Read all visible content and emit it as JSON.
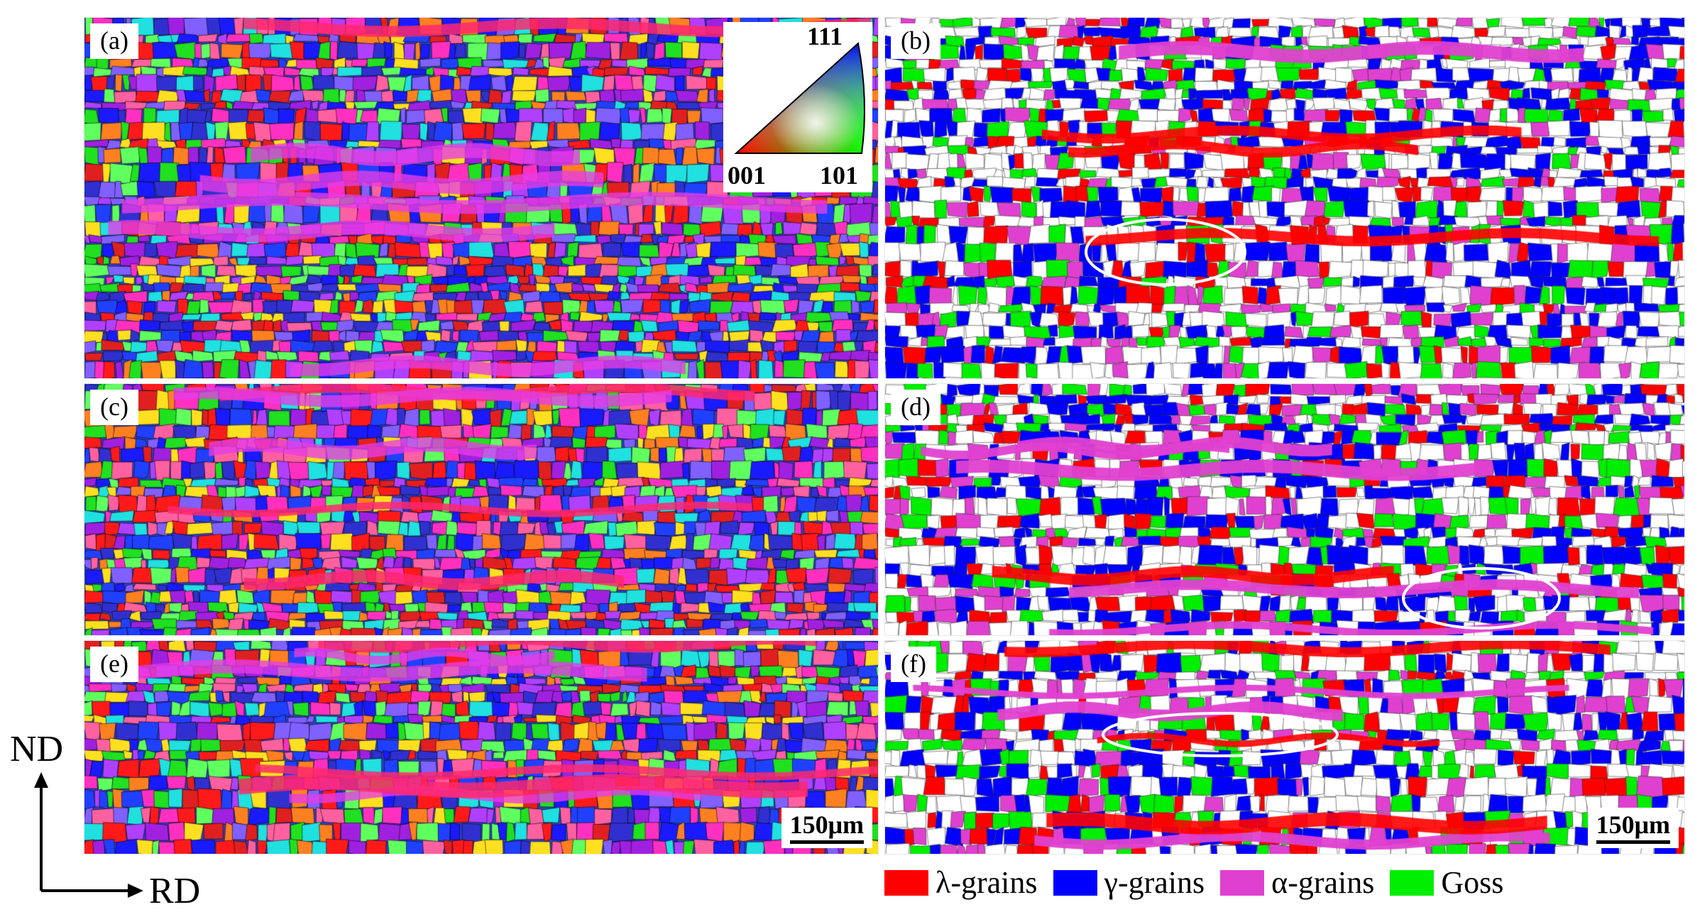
{
  "panels": [
    {
      "id": "a",
      "label": "(a)",
      "type": "ipf",
      "seed": 11,
      "scalebar": ""
    },
    {
      "id": "b",
      "label": "(b)",
      "type": "texture",
      "seed": 12,
      "scalebar": ""
    },
    {
      "id": "c",
      "label": "(c)",
      "type": "ipf",
      "seed": 21,
      "scalebar": ""
    },
    {
      "id": "d",
      "label": "(d)",
      "type": "texture",
      "seed": 22,
      "scalebar": ""
    },
    {
      "id": "e",
      "label": "(e)",
      "type": "ipf",
      "seed": 31,
      "scalebar": "150μm"
    },
    {
      "id": "f",
      "label": "(f)",
      "type": "texture",
      "seed": 32,
      "scalebar": "150μm"
    }
  ],
  "ipf_key": {
    "top": "111",
    "bottom_left": "001",
    "bottom_right": "101"
  },
  "legend": [
    {
      "label": "λ-grains",
      "color": "#ff0000"
    },
    {
      "label": "γ-grains",
      "color": "#0000ff"
    },
    {
      "label": "α-grains",
      "color": "#e040d0"
    },
    {
      "label": "Goss",
      "color": "#00ee00"
    }
  ],
  "axes": {
    "vertical": "ND",
    "horizontal": "RD"
  }
}
